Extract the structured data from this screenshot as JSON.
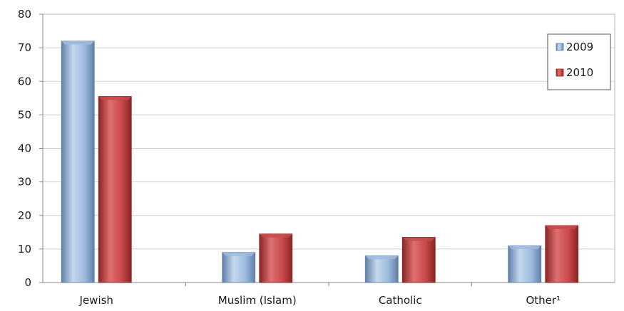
{
  "chart_data": {
    "type": "bar",
    "title": "",
    "xlabel": "",
    "ylabel": "",
    "categories": [
      "Jewish",
      "Muslim (Islam)",
      "Catholic",
      "Other¹"
    ],
    "series": [
      {
        "name": "2009",
        "values": [
          72,
          9,
          8,
          11
        ],
        "color": "#9dbbdd",
        "color_dark": "#5f7fa8"
      },
      {
        "name": "2010",
        "values": [
          55.5,
          14.5,
          13.5,
          17
        ],
        "color": "#c84a4a",
        "color_dark": "#8a2525"
      }
    ],
    "ylim": [
      0,
      80
    ],
    "yticks": [
      "0",
      "10",
      "20",
      "30",
      "40",
      "50",
      "60",
      "70",
      "80"
    ],
    "grid": true,
    "legend_position": "top-right"
  }
}
